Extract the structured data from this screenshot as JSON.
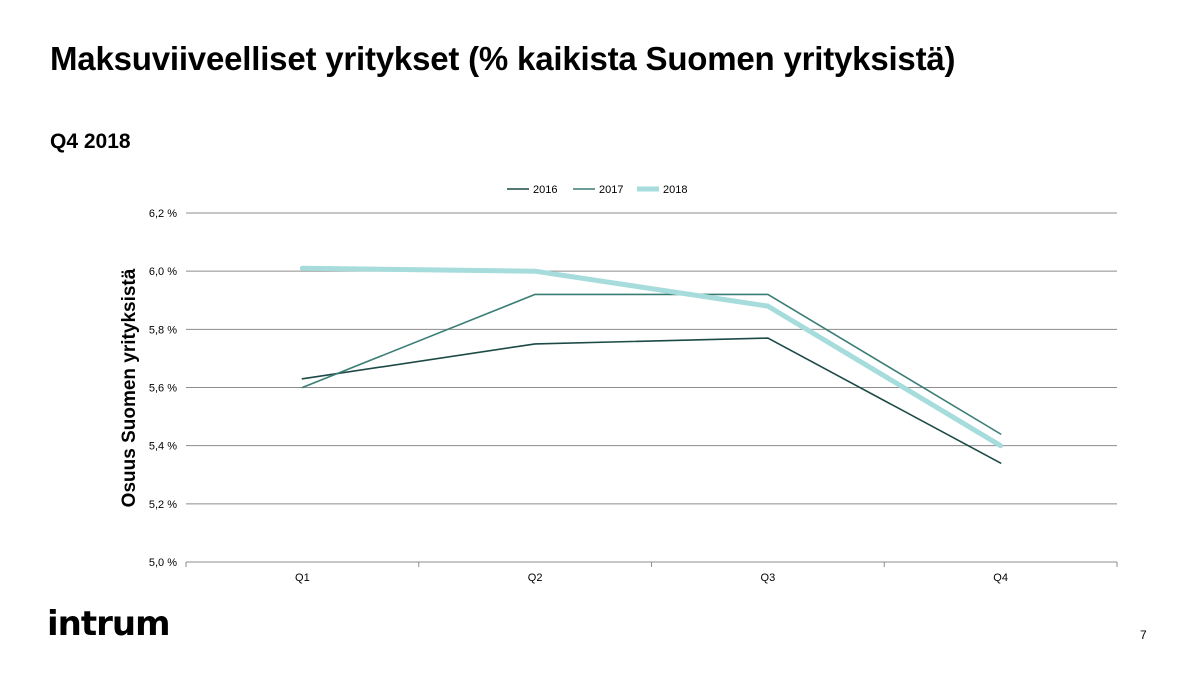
{
  "slide": {
    "title": "Maksuviiveelliset yritykset (% kaikista Suomen yrityksistä)",
    "subtitle": "Q4 2018",
    "logo": "intrum",
    "page_number": "7"
  },
  "chart_data": {
    "type": "line",
    "ylabel": "Osuus Suomen yrityksistä",
    "categories": [
      "Q1",
      "Q2",
      "Q3",
      "Q4"
    ],
    "ylim": [
      5.0,
      6.2
    ],
    "yticks": [
      5.0,
      5.2,
      5.4,
      5.6,
      5.8,
      6.0,
      6.2
    ],
    "ytick_labels": [
      "5,0 %",
      "5,2 %",
      "5,4 %",
      "5,6 %",
      "5,8 %",
      "6,0 %",
      "6,2 %"
    ],
    "grid": true,
    "legend_position": "top-center",
    "series": [
      {
        "name": "2016",
        "values": [
          5.63,
          5.75,
          5.77,
          5.34
        ],
        "color": "#1c4a47"
      },
      {
        "name": "2017",
        "values": [
          5.6,
          5.92,
          5.92,
          5.44
        ],
        "color": "#3a7d74"
      },
      {
        "name": "2018",
        "values": [
          6.01,
          6.0,
          5.88,
          5.4
        ],
        "color": "#a6dcdc"
      }
    ]
  }
}
